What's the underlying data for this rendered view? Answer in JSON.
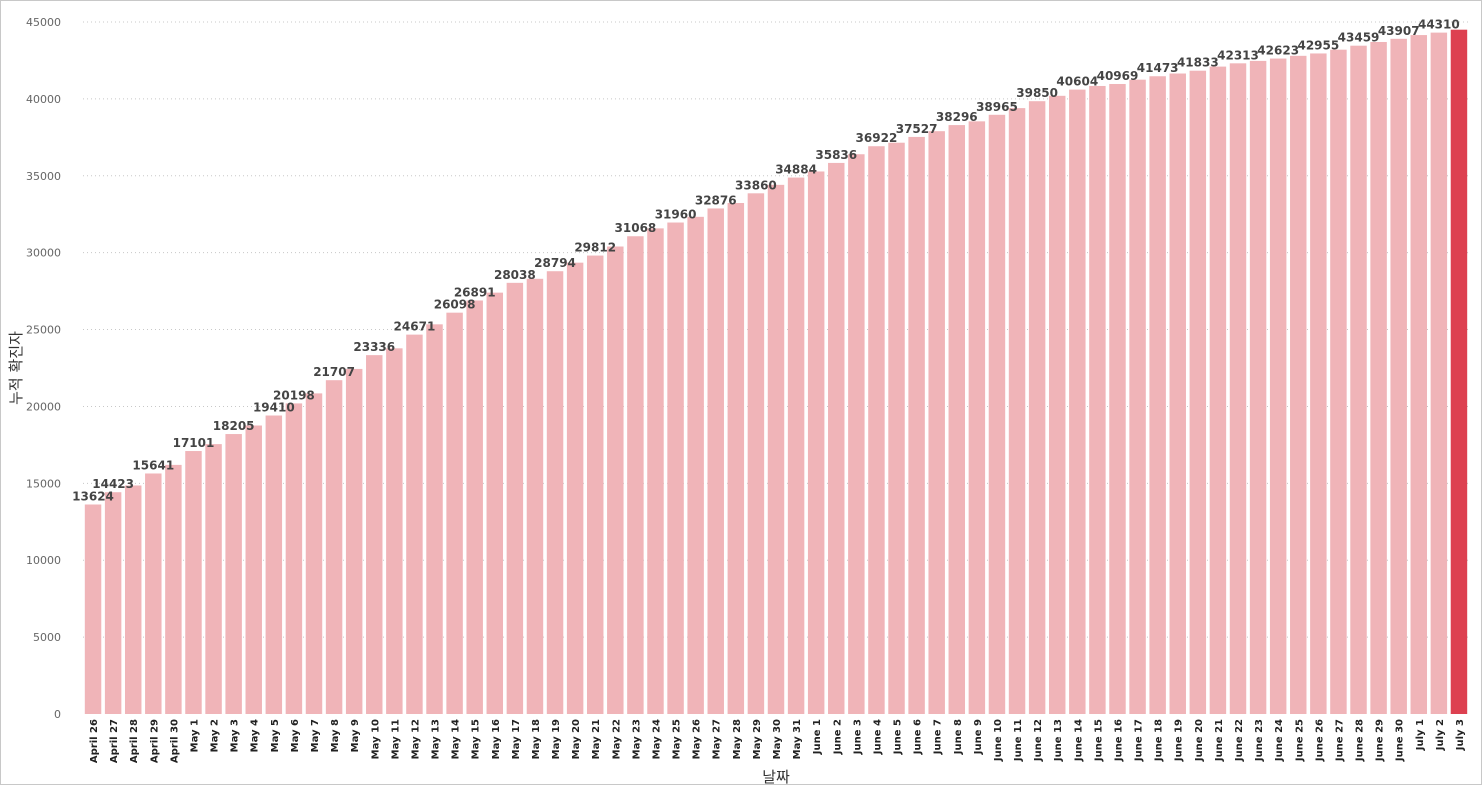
{
  "chart_data": {
    "type": "bar",
    "xlabel": "날짜",
    "ylabel": "누적 확진자",
    "ylim": [
      0,
      45000
    ],
    "yticks": [
      0,
      5000,
      10000,
      15000,
      20000,
      25000,
      30000,
      35000,
      40000,
      45000
    ],
    "grid": "horizontal-dotted",
    "bar_color": "#f0b4b8",
    "highlight_color": "#dd4050",
    "highlight_category": "July 3",
    "categories": [
      "April 26",
      "April 27",
      "April 28",
      "April 29",
      "April 30",
      "May 1",
      "May 2",
      "May 3",
      "May 4",
      "May 5",
      "May 6",
      "May 7",
      "May 8",
      "May 9",
      "May 10",
      "May 11",
      "May 12",
      "May 13",
      "May 14",
      "May 15",
      "May 16",
      "May 17",
      "May 18",
      "May 19",
      "May 20",
      "May 21",
      "May 22",
      "May 23",
      "May 24",
      "May 25",
      "May 26",
      "May 27",
      "May 28",
      "May 29",
      "May 30",
      "May 31",
      "June 1",
      "June 2",
      "June 3",
      "June 4",
      "June 5",
      "June 6",
      "June 7",
      "June 8",
      "June 9",
      "June 10",
      "June 11",
      "June 12",
      "June 13",
      "June 14",
      "June 15",
      "June 16",
      "June 17",
      "June 18",
      "June 19",
      "June 20",
      "June 21",
      "June 22",
      "June 23",
      "June 24",
      "June 25",
      "June 26",
      "June 27",
      "June 28",
      "June 29",
      "June 30",
      "July 1",
      "July 2",
      "July 3"
    ],
    "values": [
      13624,
      14423,
      14860,
      15641,
      16200,
      17101,
      17550,
      18205,
      18760,
      19410,
      20198,
      20850,
      21707,
      22440,
      23336,
      23780,
      24671,
      25340,
      26098,
      26891,
      27400,
      28038,
      28300,
      28794,
      29350,
      29812,
      30400,
      31068,
      31580,
      31960,
      32330,
      32876,
      33230,
      33860,
      34410,
      34884,
      35280,
      35836,
      36400,
      36922,
      37150,
      37527,
      37900,
      38296,
      38540,
      38965,
      39400,
      39850,
      40200,
      40604,
      40840,
      40969,
      41250,
      41473,
      41650,
      41833,
      42100,
      42313,
      42470,
      42623,
      42800,
      42955,
      43200,
      43459,
      43700,
      43907,
      44150,
      44310,
      44500
    ],
    "data_labels": [
      {
        "category": "April 26",
        "label": "13624"
      },
      {
        "category": "April 27",
        "label": "14423"
      },
      {
        "category": "April 29",
        "label": "15641"
      },
      {
        "category": "May 1",
        "label": "17101"
      },
      {
        "category": "May 3",
        "label": "18205"
      },
      {
        "category": "May 5",
        "label": "19410"
      },
      {
        "category": "May 6",
        "label": "20198"
      },
      {
        "category": "May 8",
        "label": "21707"
      },
      {
        "category": "May 10",
        "label": "23336"
      },
      {
        "category": "May 12",
        "label": "24671"
      },
      {
        "category": "May 14",
        "label": "26098"
      },
      {
        "category": "May 15",
        "label": "26891"
      },
      {
        "category": "May 17",
        "label": "28038"
      },
      {
        "category": "May 19",
        "label": "28794"
      },
      {
        "category": "May 21",
        "label": "29812"
      },
      {
        "category": "May 23",
        "label": "31068"
      },
      {
        "category": "May 25",
        "label": "31960"
      },
      {
        "category": "May 27",
        "label": "32876"
      },
      {
        "category": "May 29",
        "label": "33860"
      },
      {
        "category": "May 31",
        "label": "34884"
      },
      {
        "category": "June 2",
        "label": "35836"
      },
      {
        "category": "June 4",
        "label": "36922"
      },
      {
        "category": "June 6",
        "label": "37527"
      },
      {
        "category": "June 8",
        "label": "38296"
      },
      {
        "category": "June 10",
        "label": "38965"
      },
      {
        "category": "June 12",
        "label": "39850"
      },
      {
        "category": "June 14",
        "label": "40604"
      },
      {
        "category": "June 16",
        "label": "40969"
      },
      {
        "category": "June 18",
        "label": "41473"
      },
      {
        "category": "June 20",
        "label": "41833"
      },
      {
        "category": "June 22",
        "label": "42313"
      },
      {
        "category": "June 24",
        "label": "42623"
      },
      {
        "category": "June 26",
        "label": "42955"
      },
      {
        "category": "June 28",
        "label": "43459"
      },
      {
        "category": "June 30",
        "label": "43907"
      },
      {
        "category": "July 2",
        "label": "44310"
      }
    ]
  }
}
